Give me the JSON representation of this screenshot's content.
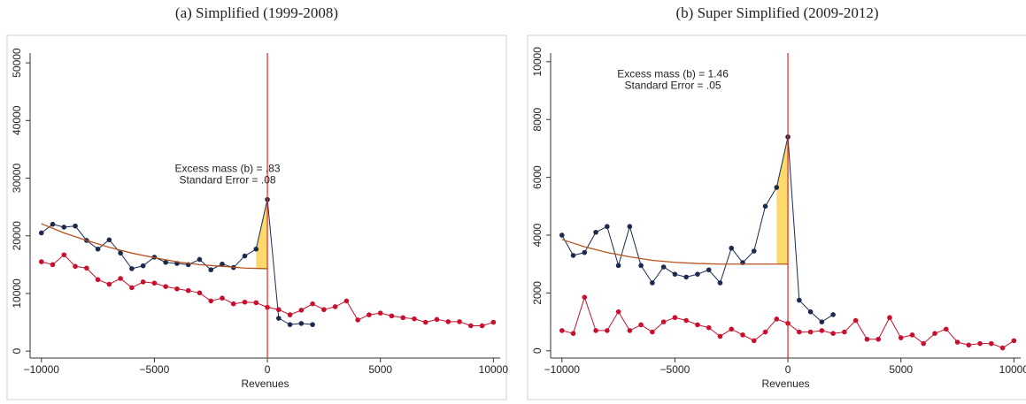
{
  "chart_data": [
    {
      "type": "line",
      "title": "(a) Simplified (1999-2008)",
      "xlabel": "Revenues",
      "annotations": [
        "Excess mass (b) = .83",
        "Standard Error = .08"
      ],
      "xlim": [
        -10500,
        10300
      ],
      "ylim": [
        -1200,
        51700
      ],
      "xticks": [
        {
          "value": -10000,
          "label": "−10000"
        },
        {
          "value": -5000,
          "label": "−5000"
        },
        0,
        5000,
        10000
      ],
      "yticks": [
        0,
        10000,
        20000,
        30000,
        40000,
        50000
      ],
      "cutoff": 0,
      "cutoff_color": "#e3261f",
      "shade_xlim": [
        -500,
        0
      ],
      "shade_color": "#fcd96a",
      "series": [
        {
          "color": "#1c2a4e",
          "marker": true,
          "x": [
            -10000,
            -9500,
            -9000,
            -8500,
            -8000,
            -7500,
            -7000,
            -6500,
            -6000,
            -5500,
            -5000,
            -4500,
            -4000,
            -3500,
            -3000,
            -2500,
            -2000,
            -1500,
            -1000,
            -500,
            0,
            500,
            1000,
            1500,
            2000
          ],
          "values": [
            20500,
            22000,
            21500,
            21700,
            19200,
            17700,
            19300,
            17000,
            14300,
            14800,
            16300,
            15400,
            15200,
            15000,
            15900,
            14100,
            15100,
            14500,
            16500,
            17700,
            26300,
            5700,
            4600,
            4800,
            4600
          ]
        },
        {
          "color": "#c8102e",
          "marker": true,
          "x": [
            -10000,
            -9500,
            -9000,
            -8500,
            -8000,
            -7500,
            -7000,
            -6500,
            -6000,
            -5500,
            -5000,
            -4500,
            -4000,
            -3500,
            -3000,
            -2500,
            -2000,
            -1500,
            -1000,
            -500,
            0,
            500,
            1000,
            1500,
            2000,
            2500,
            3000,
            3500,
            4000,
            4500,
            5000,
            5500,
            6000,
            6500,
            7000,
            7500,
            8000,
            8500,
            9000,
            9500,
            10000
          ],
          "values": [
            15500,
            15000,
            16700,
            14700,
            14400,
            12400,
            11600,
            12600,
            11000,
            12000,
            11800,
            11200,
            10800,
            10500,
            10100,
            8700,
            9200,
            8200,
            8500,
            8400,
            7600,
            7200,
            6300,
            7100,
            8200,
            7200,
            7700,
            8700,
            5400,
            6300,
            6600,
            6100,
            5800,
            5600,
            5000,
            5500,
            5100,
            5100,
            4400,
            4400,
            5000
          ]
        },
        {
          "color": "#b5531c",
          "marker": false,
          "fit": true,
          "x": [
            -10000,
            -9000,
            -8000,
            -7000,
            -6000,
            -5000,
            -4000,
            -3000,
            -2000,
            -1000,
            0
          ],
          "values": [
            22100,
            20500,
            19200,
            18000,
            17000,
            16200,
            15500,
            15000,
            14700,
            14400,
            14300
          ]
        }
      ]
    },
    {
      "type": "line",
      "title": "(b) Super Simplified (2009-2012)",
      "xlabel": "Revenues",
      "annotations": [
        "Excess mass (b) = 1.46",
        "Standard Error = .05"
      ],
      "xlim": [
        -10500,
        10300
      ],
      "ylim": [
        -250,
        10300
      ],
      "xticks": [
        {
          "value": -10000,
          "label": "−10000"
        },
        {
          "value": -5000,
          "label": "−5000"
        },
        0,
        5000,
        10000
      ],
      "yticks": [
        0,
        2000,
        4000,
        6000,
        8000,
        10000
      ],
      "cutoff": 0,
      "cutoff_color": "#e3261f",
      "shade_xlim": [
        -500,
        0
      ],
      "shade_color": "#fcd96a",
      "series": [
        {
          "color": "#1c2a4e",
          "marker": true,
          "x": [
            -10000,
            -9500,
            -9000,
            -8500,
            -8000,
            -7500,
            -7000,
            -6500,
            -6000,
            -5500,
            -5000,
            -4500,
            -4000,
            -3500,
            -3000,
            -2500,
            -2000,
            -1500,
            -1000,
            -500,
            0,
            500,
            1000,
            1500,
            2000
          ],
          "values": [
            4000,
            3300,
            3400,
            4100,
            4300,
            2950,
            4300,
            2950,
            2350,
            2900,
            2650,
            2550,
            2650,
            2800,
            2350,
            3550,
            3050,
            3450,
            5000,
            5650,
            7400,
            1750,
            1350,
            1000,
            1250
          ]
        },
        {
          "color": "#c8102e",
          "marker": true,
          "x": [
            -10000,
            -9500,
            -9000,
            -8500,
            -8000,
            -7500,
            -7000,
            -6500,
            -6000,
            -5500,
            -5000,
            -4500,
            -4000,
            -3500,
            -3000,
            -2500,
            -2000,
            -1500,
            -1000,
            -500,
            0,
            500,
            1000,
            1500,
            2000,
            2500,
            3000,
            3500,
            4000,
            4500,
            5000,
            5500,
            6000,
            6500,
            7000,
            7500,
            8000,
            8500,
            9000,
            9500,
            10000
          ],
          "values": [
            700,
            600,
            1850,
            700,
            700,
            1350,
            700,
            900,
            650,
            1000,
            1150,
            1050,
            900,
            800,
            500,
            750,
            550,
            350,
            650,
            1100,
            950,
            650,
            650,
            700,
            600,
            650,
            1050,
            400,
            400,
            1150,
            450,
            550,
            250,
            600,
            750,
            300,
            200,
            250,
            250,
            100,
            350
          ]
        },
        {
          "color": "#b5531c",
          "marker": false,
          "fit": true,
          "x": [
            -10000,
            -9000,
            -8000,
            -7000,
            -6000,
            -5000,
            -4000,
            -3000,
            -2000,
            -1000,
            0
          ],
          "values": [
            3850,
            3600,
            3400,
            3250,
            3130,
            3060,
            3020,
            3000,
            3000,
            3000,
            3000
          ]
        }
      ]
    }
  ]
}
